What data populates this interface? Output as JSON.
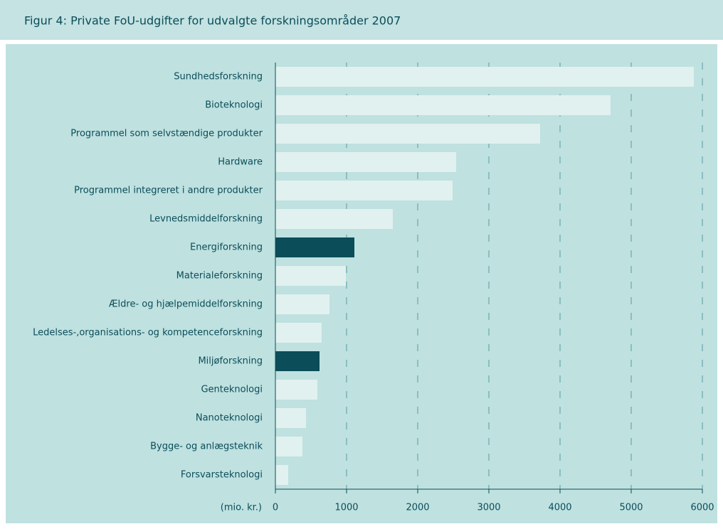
{
  "chart_data": {
    "type": "barh",
    "title": "Figur 4: Private FoU-udgifter for udvalgte forskningsområder 2007",
    "categories": [
      "Sundhedsforskning",
      "Bioteknologi",
      "Programmel som selvstændige produkter",
      "Hardware",
      "Programmel integreret i andre produkter",
      "Levnedsmiddelforskning",
      "Energiforskning",
      "Materialeforskning",
      "Ældre- og hjælpemiddelforskning",
      "Ledelses-,organisations- og kompetenceforskning",
      "Miljøforskning",
      "Genteknologi",
      "Nanoteknologi",
      "Bygge- og anlægsteknik",
      "Forsvarsteknologi"
    ],
    "values": [
      5880,
      4710,
      3720,
      2540,
      2490,
      1650,
      1110,
      990,
      760,
      650,
      620,
      590,
      430,
      380,
      180
    ],
    "colors": [
      "#e1f1f0",
      "#e1f1f0",
      "#e1f1f0",
      "#e1f1f0",
      "#e1f1f0",
      "#e1f1f0",
      "#0b4d59",
      "#e1f1f0",
      "#e1f1f0",
      "#e1f1f0",
      "#0b4d59",
      "#e1f1f0",
      "#e1f1f0",
      "#e1f1f0",
      "#e1f1f0"
    ],
    "xlabel": "(mio. kr.)",
    "xlim": [
      0,
      6000
    ],
    "xticks": [
      0,
      1000,
      2000,
      3000,
      4000,
      5000,
      6000
    ],
    "grid": true
  }
}
